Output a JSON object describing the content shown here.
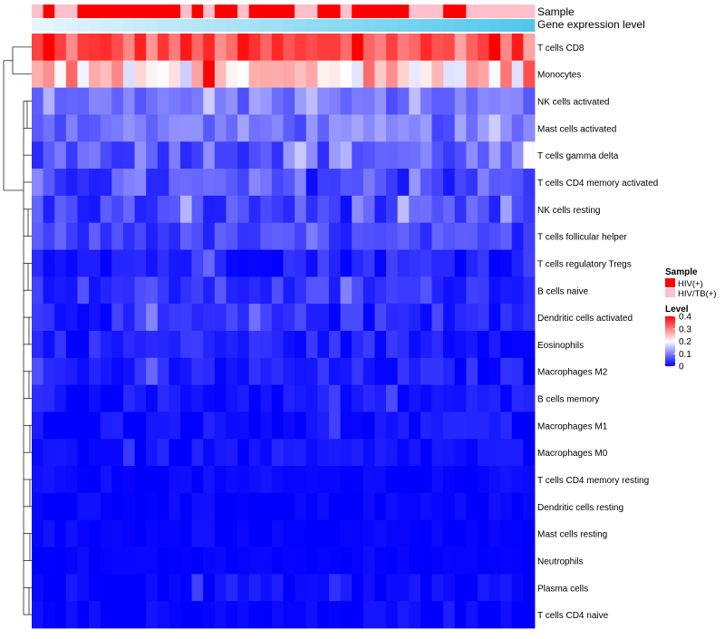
{
  "chart_data": {
    "type": "heatmap",
    "title": "",
    "annotation_labels": {
      "sample": "Sample",
      "gene_expression": "Gene expression level"
    },
    "legend_sample": {
      "title": "Sample",
      "entries": [
        {
          "label": "HIV(+)",
          "color": "#ff0000"
        },
        {
          "label": "HIV/TB(+)",
          "color": "#ffc0cb"
        }
      ]
    },
    "legend_level": {
      "title": "Level",
      "ticks": [
        0,
        0.1,
        0.2,
        0.3,
        0.4
      ],
      "tick_labels": [
        "0",
        "0.1",
        "0.2",
        "0.3",
        "0.4"
      ],
      "range": [
        0,
        0.4
      ],
      "colors": [
        "#0000ff",
        "#ffffff",
        "#ff0000"
      ]
    },
    "n_samples": 44,
    "sample_groups": [
      "HIV/TB(+)",
      "HIV(+)",
      "HIV/TB(+)",
      "HIV/TB(+)",
      "HIV(+)",
      "HIV(+)",
      "HIV(+)",
      "HIV(+)",
      "HIV(+)",
      "HIV(+)",
      "HIV(+)",
      "HIV(+)",
      "HIV(+)",
      "HIV/TB(+)",
      "HIV(+)",
      "HIV/TB(+)",
      "HIV(+)",
      "HIV(+)",
      "HIV/TB(+)",
      "HIV(+)",
      "HIV(+)",
      "HIV(+)",
      "HIV(+)",
      "HIV/TB(+)",
      "HIV/TB(+)",
      "HIV(+)",
      "HIV(+)",
      "HIV/TB(+)",
      "HIV(+)",
      "HIV(+)",
      "HIV(+)",
      "HIV(+)",
      "HIV(+)",
      "HIV/TB(+)",
      "HIV/TB(+)",
      "HIV/TB(+)",
      "HIV(+)",
      "HIV(+)",
      "HIV/TB(+)",
      "HIV/TB(+)",
      "HIV/TB(+)",
      "HIV/TB(+)",
      "HIV/TB(+)",
      "HIV/TB(+)"
    ],
    "rows": [
      {
        "name": "T cells CD8",
        "mean": 0.33,
        "spread": 0.06
      },
      {
        "name": "Monocytes",
        "mean": 0.24,
        "spread": 0.08
      },
      {
        "name": "NK cells activated",
        "mean": 0.09,
        "spread": 0.03
      },
      {
        "name": "Mast cells activated",
        "mean": 0.09,
        "spread": 0.04
      },
      {
        "name": "T cells gamma delta",
        "mean": 0.08,
        "spread": 0.05
      },
      {
        "name": "T cells CD4 memory activated",
        "mean": 0.06,
        "spread": 0.05
      },
      {
        "name": "NK cells resting",
        "mean": 0.05,
        "spread": 0.04
      },
      {
        "name": "T cells follicular helper",
        "mean": 0.05,
        "spread": 0.03
      },
      {
        "name": "T cells regulatory  Tregs",
        "mean": 0.03,
        "spread": 0.03
      },
      {
        "name": "B cells naive",
        "mean": 0.04,
        "spread": 0.03
      },
      {
        "name": "Dendritic cells activated",
        "mean": 0.03,
        "spread": 0.03
      },
      {
        "name": "Eosinophils",
        "mean": 0.025,
        "spread": 0.025
      },
      {
        "name": "Macrophages M2",
        "mean": 0.02,
        "spread": 0.025
      },
      {
        "name": "B cells memory",
        "mean": 0.015,
        "spread": 0.02
      },
      {
        "name": "Macrophages M1",
        "mean": 0.012,
        "spread": 0.018
      },
      {
        "name": "Macrophages M0",
        "mean": 0.01,
        "spread": 0.02
      },
      {
        "name": "T cells CD4 memory resting",
        "mean": 0.004,
        "spread": 0.012
      },
      {
        "name": "Dendritic cells resting",
        "mean": 0.004,
        "spread": 0.01
      },
      {
        "name": "Mast cells resting",
        "mean": 0.002,
        "spread": 0.006
      },
      {
        "name": "Neutrophils",
        "mean": 0.002,
        "spread": 0.005
      },
      {
        "name": "Plasma cells",
        "mean": 0.008,
        "spread": 0.018
      },
      {
        "name": "T cells CD4 naive",
        "mean": 0.004,
        "spread": 0.012
      }
    ],
    "row_dendrogram": true
  }
}
